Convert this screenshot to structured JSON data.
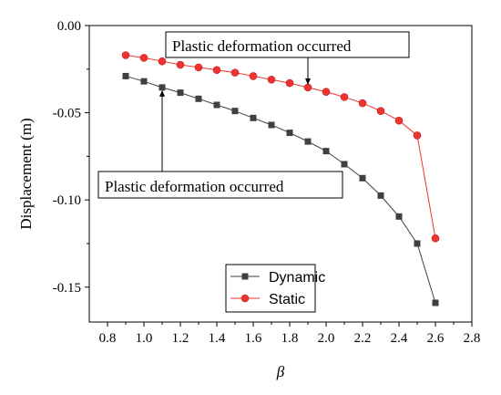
{
  "chart_data": {
    "type": "line",
    "xlabel": "β",
    "ylabel": "Displacement (m)",
    "xlim": [
      0.7,
      2.8
    ],
    "ylim": [
      -0.17,
      0.0
    ],
    "x_ticks": [
      0.8,
      1.0,
      1.2,
      1.4,
      1.6,
      1.8,
      2.0,
      2.2,
      2.4,
      2.6,
      2.8
    ],
    "x_tick_labels": [
      "0.8",
      "1.0",
      "1.2",
      "1.4",
      "1.6",
      "1.8",
      "2.0",
      "2.2",
      "2.4",
      "2.6",
      "2.8"
    ],
    "y_ticks": [
      0.0,
      -0.05,
      -0.1,
      -0.15
    ],
    "y_tick_labels": [
      "0.00",
      "-0.05",
      "-0.10",
      "-0.15"
    ],
    "grid": false,
    "legend_position": "bottom-center",
    "series": [
      {
        "name": "Dynamic",
        "color": "#404040",
        "marker": "square",
        "x": [
          0.9,
          1.0,
          1.1,
          1.2,
          1.3,
          1.4,
          1.5,
          1.6,
          1.7,
          1.8,
          1.9,
          2.0,
          2.1,
          2.2,
          2.3,
          2.4,
          2.5,
          2.6
        ],
        "y": [
          -0.029,
          -0.032,
          -0.0355,
          -0.0385,
          -0.042,
          -0.0455,
          -0.049,
          -0.053,
          -0.057,
          -0.0615,
          -0.0665,
          -0.072,
          -0.0795,
          -0.0875,
          -0.0975,
          -0.1095,
          -0.125,
          -0.159
        ]
      },
      {
        "name": "Static",
        "color": "#ee3333",
        "marker": "circle",
        "x": [
          0.9,
          1.0,
          1.1,
          1.2,
          1.3,
          1.4,
          1.5,
          1.6,
          1.7,
          1.8,
          1.9,
          2.0,
          2.1,
          2.2,
          2.3,
          2.4,
          2.5,
          2.6
        ],
        "y": [
          -0.017,
          -0.0185,
          -0.0205,
          -0.0225,
          -0.024,
          -0.0255,
          -0.027,
          -0.029,
          -0.031,
          -0.033,
          -0.0355,
          -0.038,
          -0.041,
          -0.0445,
          -0.049,
          -0.0545,
          -0.063,
          -0.122
        ]
      }
    ],
    "annotations": [
      {
        "text": "Plastic deformation occurred",
        "target": {
          "x": 1.9,
          "y": -0.0355
        }
      },
      {
        "text": "Plastic deformation occurred",
        "target": {
          "x": 1.1,
          "y": -0.0355
        }
      }
    ]
  }
}
